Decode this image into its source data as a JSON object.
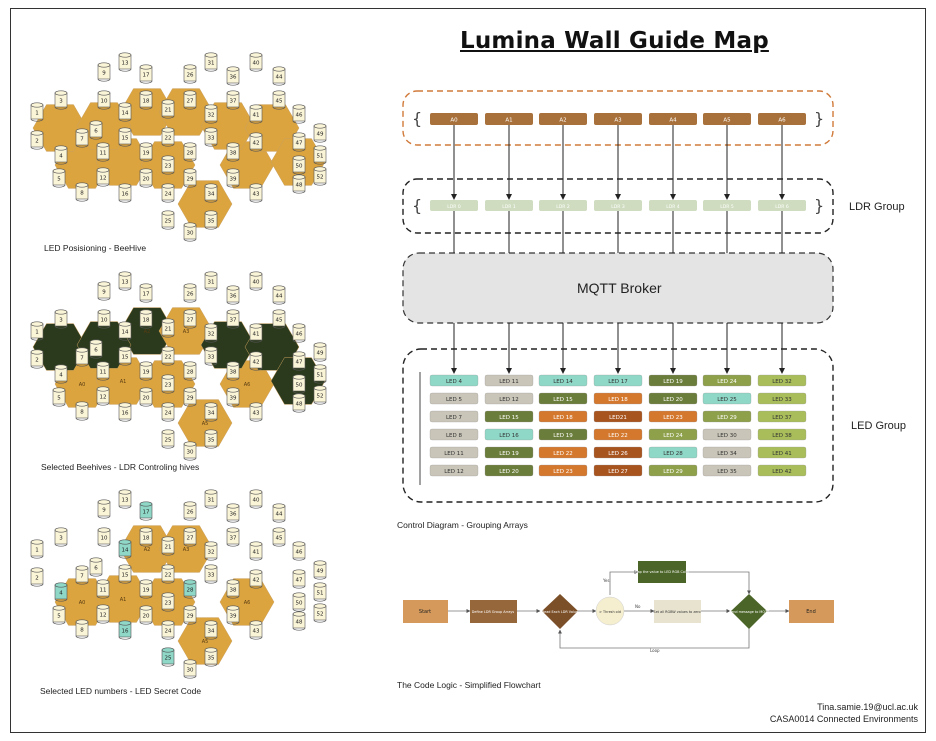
{
  "title": "Lumina Wall Guide Map",
  "captions": {
    "hive1": "LED Posisioning - BeeHive",
    "hive2": "Selected Beehives - LDR Controling hives",
    "hive3": "Selected LED numbers - LED Secret Code",
    "control": "Control Diagram - Grouping Arrays",
    "flow": "The Code Logic - Simplified Flowchart"
  },
  "ldr_group_label": "LDR Group",
  "led_group_label": "LED Group",
  "broker_label": "MQTT Broker",
  "analog_inputs": [
    "A0",
    "A1",
    "A2",
    "A3",
    "A4",
    "A5",
    "A6"
  ],
  "ldr_nodes": [
    "LDR 0",
    "LDR 1",
    "LDR 2",
    "LDR 3",
    "LDR 4",
    "LDR 5",
    "LDR 6"
  ],
  "led_columns": [
    {
      "cells": [
        [
          "LED 4",
          "#8fd8c8"
        ],
        [
          "LED 5",
          "#c9c5b8"
        ],
        [
          "LED 7",
          "#c9c5b8"
        ],
        [
          "LED 8",
          "#c9c5b8"
        ],
        [
          "LED 11",
          "#c9c5b8"
        ],
        [
          "LED 12",
          "#c9c5b8"
        ]
      ]
    },
    {
      "cells": [
        [
          "LED 11",
          "#c9c5b8"
        ],
        [
          "LED 12",
          "#c9c5b8"
        ],
        [
          "LED 15",
          "#6b7d3a"
        ],
        [
          "LED 16",
          "#8fd8c8"
        ],
        [
          "LED 19",
          "#6b7d3a"
        ],
        [
          "LED 20",
          "#6b7d3a"
        ]
      ]
    },
    {
      "cells": [
        [
          "LED 14",
          "#8fd8c8"
        ],
        [
          "LED 15",
          "#6b7d3a"
        ],
        [
          "LED 18",
          "#d4782e"
        ],
        [
          "LED 19",
          "#6b7d3a"
        ],
        [
          "LED 22",
          "#d4782e"
        ],
        [
          "LED 23",
          "#d4782e"
        ]
      ]
    },
    {
      "cells": [
        [
          "LED 17",
          "#8fd8c8"
        ],
        [
          "LED 18",
          "#d4782e"
        ],
        [
          "LED21",
          "#a8541f"
        ],
        [
          "LED 22",
          "#d4782e"
        ],
        [
          "LED 26",
          "#a8541f"
        ],
        [
          "LED 27",
          "#a8541f"
        ]
      ]
    },
    {
      "cells": [
        [
          "LED 19",
          "#6b7d3a"
        ],
        [
          "LED 20",
          "#6b7d3a"
        ],
        [
          "LED 23",
          "#d4782e"
        ],
        [
          "LED 24",
          "#8ea04a"
        ],
        [
          "LED 28",
          "#8fd8c8"
        ],
        [
          "LED 29",
          "#8ea04a"
        ]
      ]
    },
    {
      "cells": [
        [
          "LED 24",
          "#8ea04a"
        ],
        [
          "LED 25",
          "#8fd8c8"
        ],
        [
          "LED 29",
          "#8ea04a"
        ],
        [
          "LED 30",
          "#c9c5b8"
        ],
        [
          "LED 34",
          "#c9c5b8"
        ],
        [
          "LED 35",
          "#c9c5b8"
        ]
      ]
    },
    {
      "cells": [
        [
          "LED 32",
          "#a9be5a"
        ],
        [
          "LED 33",
          "#a9be5a"
        ],
        [
          "LED 37",
          "#a9be5a"
        ],
        [
          "LED 38",
          "#a9be5a"
        ],
        [
          "LED 41",
          "#a9be5a"
        ],
        [
          "LED 42",
          "#a9be5a"
        ]
      ]
    }
  ],
  "flow": {
    "start": "Start",
    "define": "Define LDR Group Arrays",
    "read": "Read Each LDR Value",
    "threshold": "> Thresh old",
    "map": "Map the value to LED RGB Color",
    "setzero": "Set all RGBW values to zero",
    "send": "Send message to MQTT",
    "end": "End",
    "yes": "Yes",
    "no": "No",
    "loop": "Loop"
  },
  "hive_numbers": [
    "1",
    "2",
    "3",
    "4",
    "5",
    "6",
    "7",
    "8",
    "9",
    "10",
    "11",
    "12",
    "13",
    "14",
    "15",
    "16",
    "17",
    "18",
    "19",
    "20",
    "21",
    "22",
    "23",
    "24",
    "25",
    "26",
    "27",
    "28",
    "29",
    "30",
    "31",
    "32",
    "33",
    "34",
    "35",
    "36",
    "37",
    "38",
    "39",
    "40",
    "41",
    "42",
    "43",
    "44",
    "45",
    "46",
    "47",
    "48",
    "49",
    "50",
    "51",
    "52"
  ],
  "hive_zone_labels": [
    "A0",
    "A1",
    "A2",
    "A3",
    "A4",
    "A5",
    "A6"
  ],
  "footer": {
    "email": "Tina.samie.19@ucl.ac.uk",
    "course": "CASA0014 Connected Environments"
  },
  "colors": {
    "hive_gold": "#dba43f",
    "hive_dark": "#2b3a1c",
    "cylinder": "#fbf5d8",
    "teal": "#8fd8c8",
    "arduino_brown": "#a8703a",
    "ldr_green": "#cfdcbf",
    "broker_gray": "#e4e4e4",
    "flow_tan": "#d59a5b",
    "flow_brown": "#97673c",
    "flow_green": "#4b6428"
  }
}
